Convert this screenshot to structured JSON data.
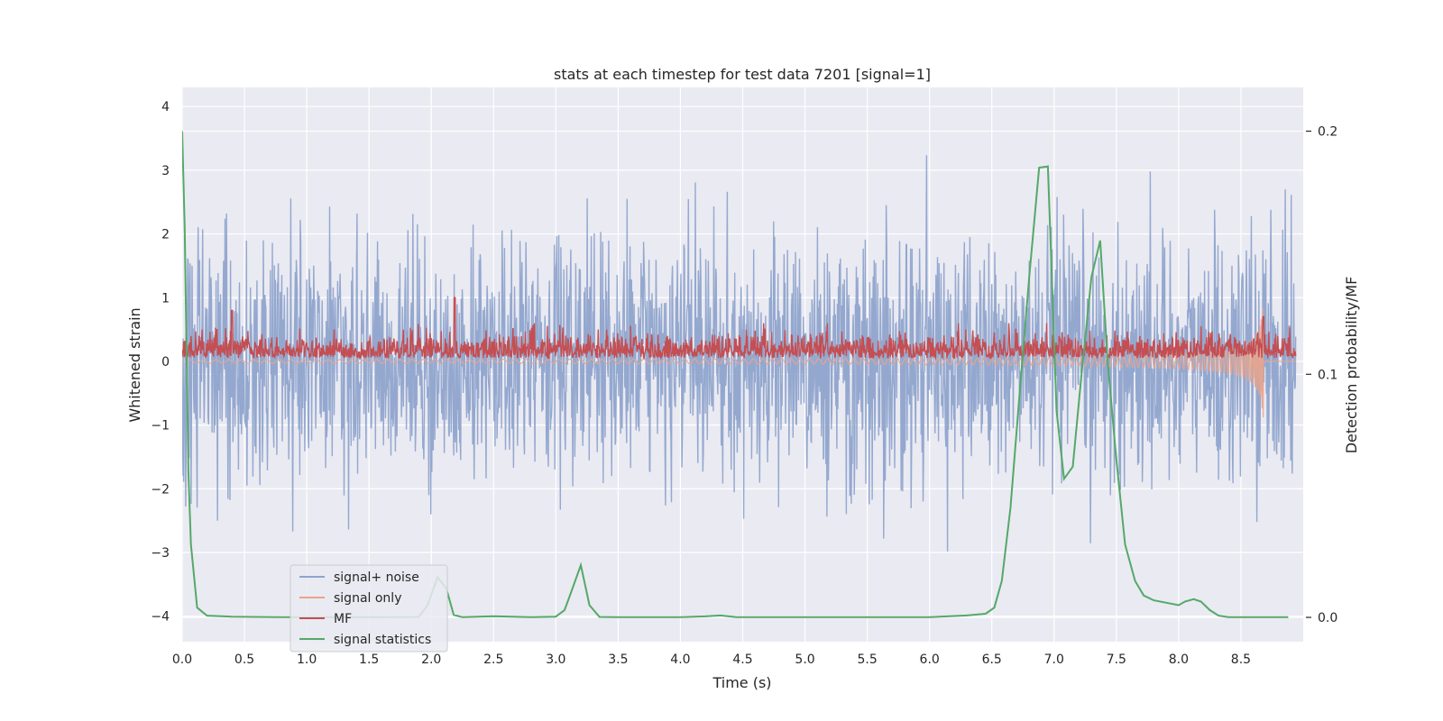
{
  "chart_data": {
    "type": "line",
    "title": "stats at each timestep for test data 7201 [signal=1]",
    "xlabel": "Time (s)",
    "ylabel": "Whitened strain",
    "y2label": "Detection probability/MF",
    "xlim": [
      0,
      9.0
    ],
    "ylim": [
      -4.4,
      4.3
    ],
    "y2lim": [
      -0.01,
      0.218
    ],
    "x_ticks": [
      0.0,
      0.5,
      1.0,
      1.5,
      2.0,
      2.5,
      3.0,
      3.5,
      4.0,
      4.5,
      5.0,
      5.5,
      6.0,
      6.5,
      7.0,
      7.5,
      8.0,
      8.5
    ],
    "x_tick_labels": [
      "0.0",
      "0.5",
      "1.0",
      "1.5",
      "2.0",
      "2.5",
      "3.0",
      "3.5",
      "4.0",
      "4.5",
      "5.0",
      "5.5",
      "6.0",
      "6.5",
      "7.0",
      "7.5",
      "8.0",
      "8.5"
    ],
    "y_ticks": [
      -4,
      -3,
      -2,
      -1,
      0,
      1,
      2,
      3,
      4
    ],
    "y_tick_labels": [
      "−4",
      "−3",
      "−2",
      "−1",
      "0",
      "1",
      "2",
      "3",
      "4"
    ],
    "y2_ticks": [
      0.0,
      0.1,
      0.2
    ],
    "y2_tick_labels": [
      "0.0",
      "0.1",
      "0.2"
    ],
    "grid": true,
    "legend_position": "lower-left",
    "series": [
      {
        "name": "signal+ noise",
        "color": "#8fa4cc",
        "axis": "left",
        "kind": "noise",
        "sample_rate_hz": 250,
        "approx_std": 0.95,
        "range": [
          -3.9,
          3.9
        ]
      },
      {
        "name": "signal only",
        "color": "#e8a48c",
        "axis": "left",
        "kind": "chirp",
        "peak_time_s": 8.68,
        "peak_amplitude": 1.0
      },
      {
        "name": "MF",
        "color": "#c44e52",
        "axis": "left",
        "kind": "band",
        "typical_range": [
          0.0,
          0.6
        ],
        "spikes": [
          [
            0.4,
            0.8
          ],
          [
            2.19,
            1.0
          ],
          [
            8.68,
            0.7
          ]
        ]
      },
      {
        "name": "signal statistics",
        "color": "#55a868",
        "axis": "right",
        "x": [
          0.0,
          0.02,
          0.05,
          0.07,
          0.12,
          0.2,
          0.4,
          0.8,
          1.2,
          1.6,
          1.9,
          1.97,
          2.05,
          2.12,
          2.18,
          2.25,
          2.5,
          2.8,
          3.0,
          3.07,
          3.12,
          3.2,
          3.27,
          3.35,
          3.5,
          4.0,
          4.2,
          4.32,
          4.45,
          5.0,
          5.5,
          6.0,
          6.3,
          6.45,
          6.52,
          6.58,
          6.65,
          6.72,
          6.8,
          6.88,
          6.95,
          7.02,
          7.08,
          7.15,
          7.22,
          7.3,
          7.37,
          7.43,
          7.5,
          7.57,
          7.65,
          7.72,
          7.8,
          8.0,
          8.05,
          8.12,
          8.18,
          8.25,
          8.32,
          8.4,
          8.6,
          8.88
        ],
        "y": [
          0.2,
          0.16,
          0.06,
          0.03,
          0.004,
          0.0007,
          0.0003,
          0.0001,
          0.0001,
          0.0001,
          0.0002,
          0.005,
          0.0165,
          0.012,
          0.001,
          0.0001,
          0.0005,
          0.0001,
          0.0003,
          0.003,
          0.01,
          0.0215,
          0.005,
          0.0002,
          0.0001,
          0.0001,
          0.0004,
          0.0008,
          0.0001,
          0.0001,
          0.0001,
          0.0001,
          0.0008,
          0.0015,
          0.004,
          0.015,
          0.045,
          0.09,
          0.14,
          0.185,
          0.1855,
          0.085,
          0.057,
          0.062,
          0.1,
          0.14,
          0.155,
          0.105,
          0.065,
          0.03,
          0.015,
          0.009,
          0.007,
          0.005,
          0.0065,
          0.0075,
          0.0065,
          0.003,
          0.0007,
          0.0001,
          0.0001,
          0.0001
        ]
      }
    ]
  }
}
